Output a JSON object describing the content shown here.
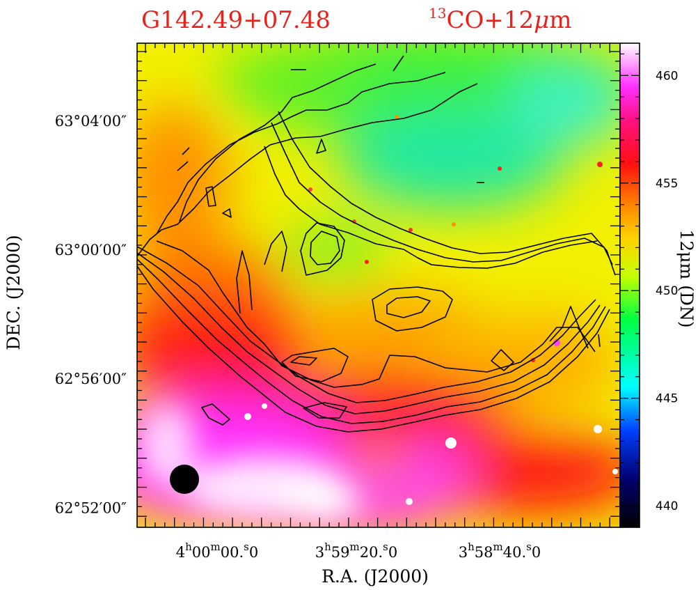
{
  "chart_data": {
    "type": "heatmap",
    "title_left": "G142.49+07.48",
    "title_right": {
      "sup": "13",
      "main": "CO+12",
      "mu": "μ",
      "tail": "m"
    },
    "xlabel": "R.A.  (J2000)",
    "ylabel": "DEC.  (J2000)",
    "x_ticks": [
      {
        "h": "4",
        "m": "00",
        "s": "00",
        "frac": "0",
        "label": "4h00m00.0s"
      },
      {
        "h": "3",
        "m": "59",
        "s": "20",
        "frac": "0",
        "label": "3h59m20.0s"
      },
      {
        "h": "3",
        "m": "58",
        "s": "40",
        "frac": "0",
        "label": "3h58m40.0s"
      }
    ],
    "y_ticks": [
      {
        "label": "63°04′00″",
        "dec_arcmin": 4
      },
      {
        "label": "63°00′00″",
        "dec_arcmin": 0
      },
      {
        "label": "62°56′00″",
        "dec_arcmin": -4
      },
      {
        "label": "62°52′00″",
        "dec_arcmin": -8
      }
    ],
    "colorbar": {
      "label": "12μm (DN)",
      "range": [
        439,
        461.5
      ],
      "ticks": [
        "440",
        "445",
        "450",
        "455",
        "460"
      ],
      "colormap": [
        "#000000",
        "#0000ff",
        "#00ffff",
        "#00ff00",
        "#ffff00",
        "#ff8000",
        "#ff0000",
        "#ff00ff",
        "#ffffff"
      ]
    },
    "overlay": "13CO contours",
    "beam": "filled circle, lower-left"
  }
}
